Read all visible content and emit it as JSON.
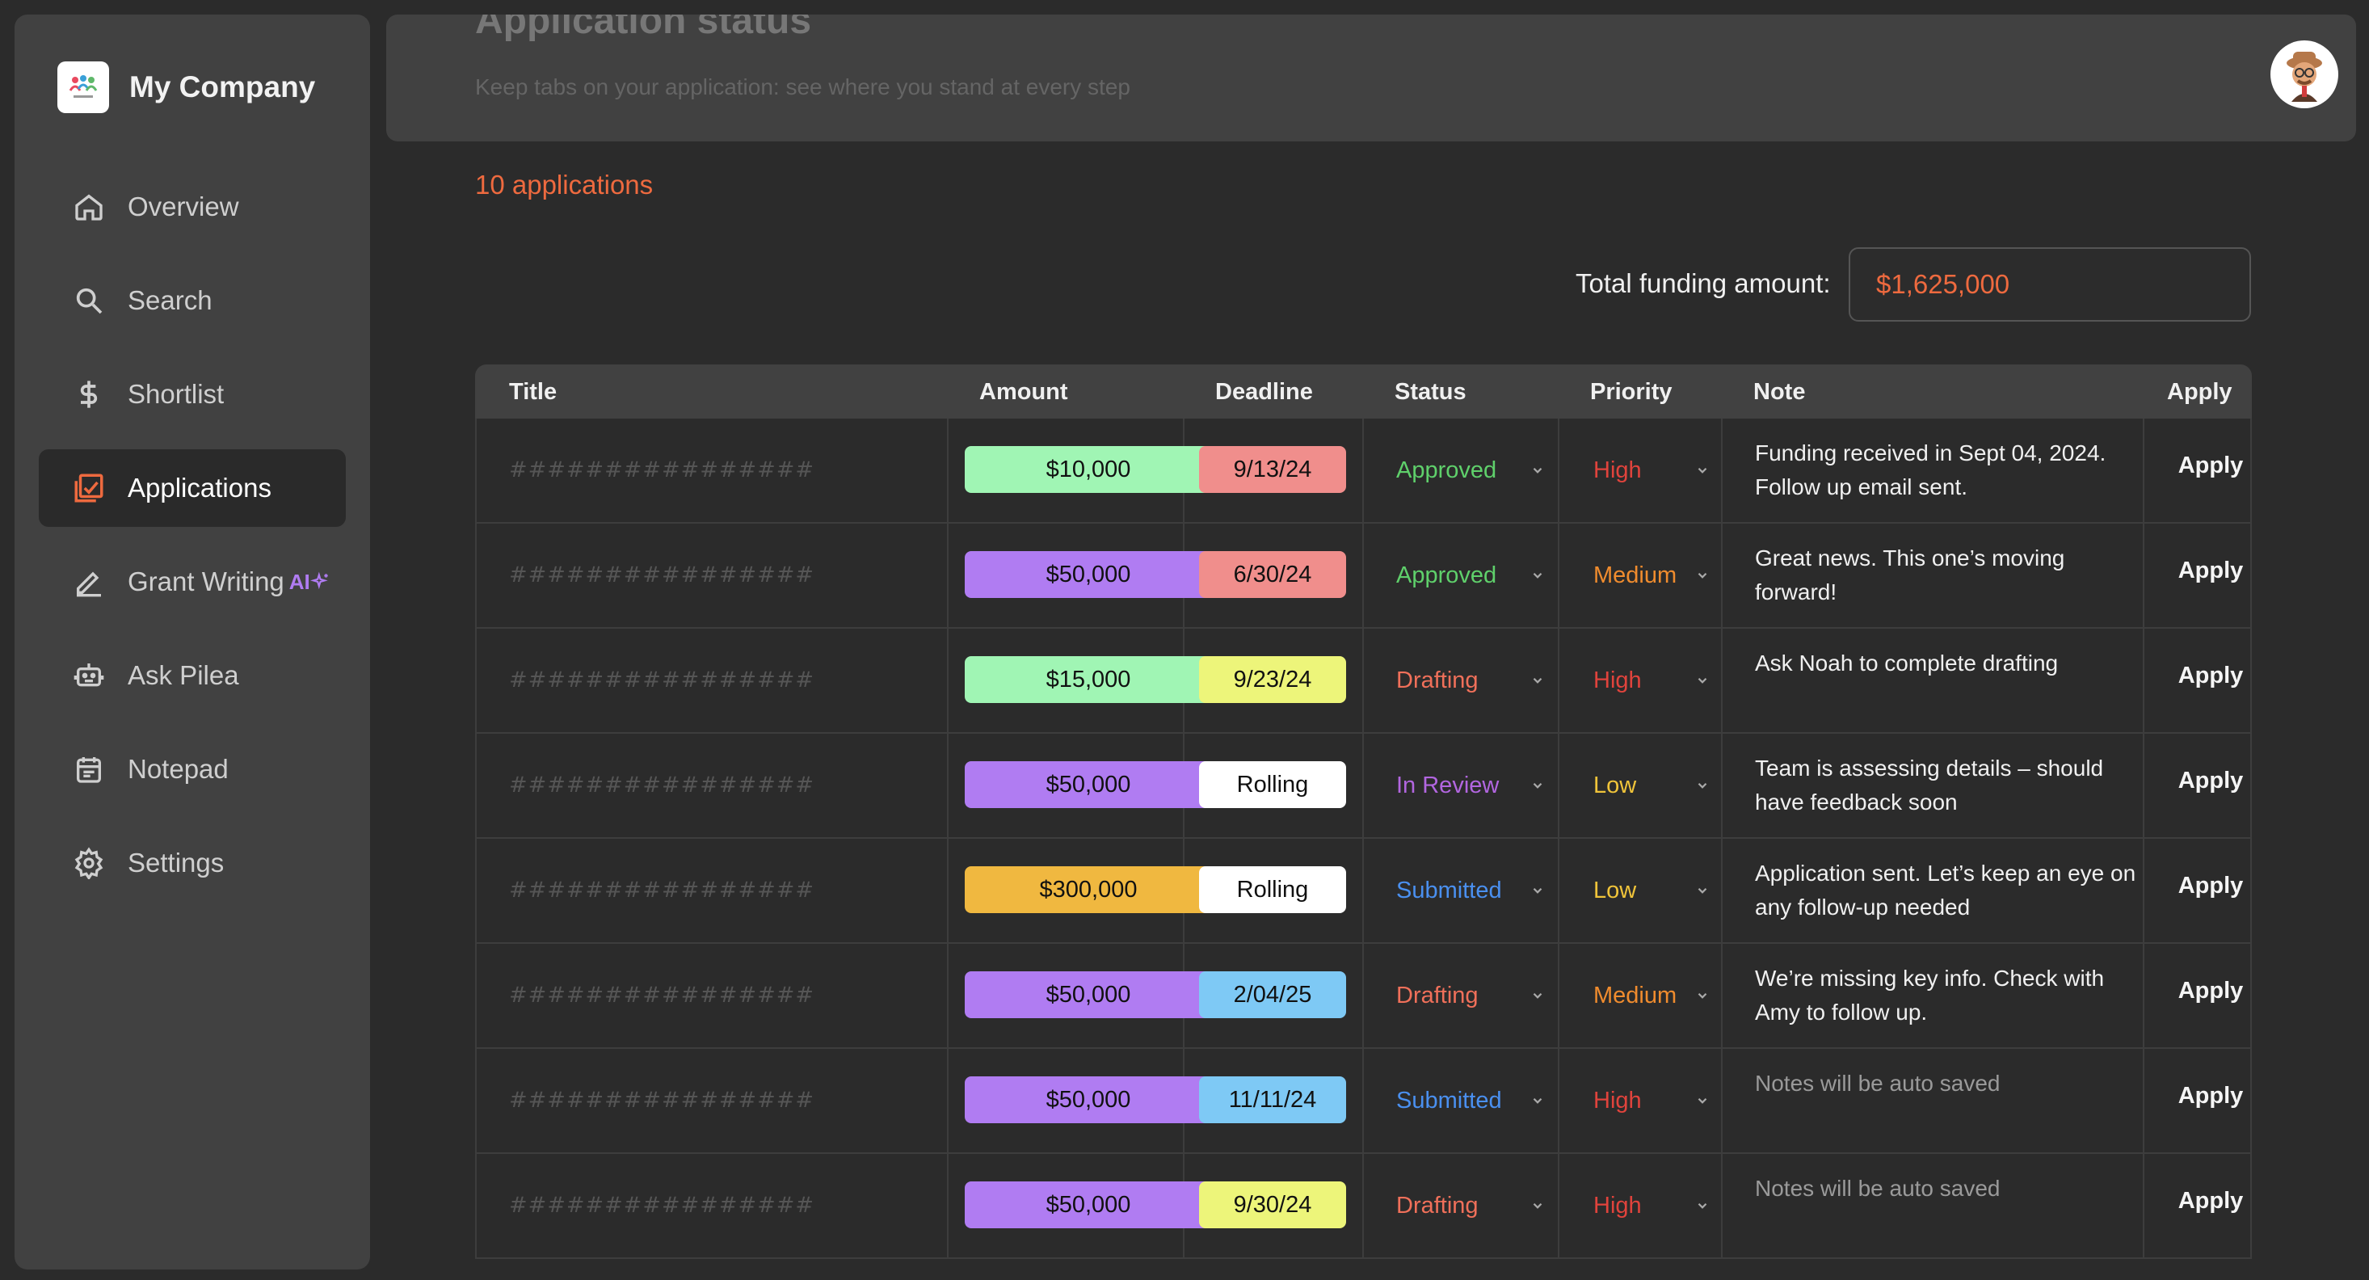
{
  "brand": {
    "name": "My Company"
  },
  "nav": [
    {
      "label": "Overview",
      "icon": "home-icon"
    },
    {
      "label": "Search",
      "icon": "search-icon"
    },
    {
      "label": "Shortlist",
      "icon": "dollar-icon"
    },
    {
      "label": "Applications",
      "icon": "chart-check-icon",
      "active": true
    },
    {
      "label": "Grant Writing",
      "icon": "pen-icon",
      "badge": "AI"
    },
    {
      "label": "Ask Pilea",
      "icon": "robot-icon"
    },
    {
      "label": "Notepad",
      "icon": "calendar-icon"
    },
    {
      "label": "Settings",
      "icon": "gear-icon"
    }
  ],
  "header": {
    "title": "Application status",
    "subtitle": "Keep tabs on your application: see where you stand at every step"
  },
  "summary": {
    "count_text": "10 applications",
    "total_label": "Total funding amount:",
    "total_value": "$1,625,000"
  },
  "table": {
    "columns": [
      "Title",
      "Amount",
      "Deadline",
      "Status",
      "Priority",
      "Note",
      "Apply"
    ],
    "rows": [
      {
        "title": "################",
        "amount": "$10,000",
        "amount_color": "#a0f5b4",
        "deadline": "9/13/24",
        "deadline_color": "#f08e8c",
        "status": "Approved",
        "status_color": "#5fd06b",
        "priority": "High",
        "priority_color": "#e0433c",
        "note": "Funding received in Sept 04, 2024. Follow up email sent.",
        "apply": "Apply"
      },
      {
        "title": "################",
        "amount": "$50,000",
        "amount_color": "#b07cf2",
        "deadline": "6/30/24",
        "deadline_color": "#f08e8c",
        "status": "Approved",
        "status_color": "#5fd06b",
        "priority": "Medium",
        "priority_color": "#f08c2e",
        "note": "Great news. This one’s moving forward!",
        "apply": "Apply"
      },
      {
        "title": "################",
        "amount": "$15,000",
        "amount_color": "#a0f5b4",
        "deadline": "9/23/24",
        "deadline_color": "#edf57a",
        "status": "Drafting",
        "status_color": "#f0705a",
        "priority": "High",
        "priority_color": "#e0433c",
        "note": "Ask Noah to complete drafting",
        "apply": "Apply"
      },
      {
        "title": "################",
        "amount": "$50,000",
        "amount_color": "#b07cf2",
        "deadline": "Rolling",
        "deadline_color": "#ffffff",
        "status": "In Review",
        "status_color": "#b266e0",
        "priority": "Low",
        "priority_color": "#f0c43a",
        "note": "Team is assessing details – should have feedback soon",
        "apply": "Apply"
      },
      {
        "title": "################",
        "amount": "$300,000",
        "amount_color": "#f0b840",
        "deadline": "Rolling",
        "deadline_color": "#ffffff",
        "status": "Submitted",
        "status_color": "#4a90f0",
        "priority": "Low",
        "priority_color": "#f0c43a",
        "note": "Application sent. Let’s keep an eye on any follow-up needed",
        "apply": "Apply"
      },
      {
        "title": "################",
        "amount": "$50,000",
        "amount_color": "#b07cf2",
        "deadline": "2/04/25",
        "deadline_color": "#7ec9f5",
        "status": "Drafting",
        "status_color": "#f0705a",
        "priority": "Medium",
        "priority_color": "#f08c2e",
        "note": "We’re missing key info. Check with Amy to follow up.",
        "apply": "Apply"
      },
      {
        "title": "################",
        "amount": "$50,000",
        "amount_color": "#b07cf2",
        "deadline": "11/11/24",
        "deadline_color": "#7ec9f5",
        "status": "Submitted",
        "status_color": "#4a90f0",
        "priority": "High",
        "priority_color": "#e0433c",
        "note": "Notes will be auto saved",
        "note_placeholder": true,
        "apply": "Apply"
      },
      {
        "title": "################",
        "amount": "$50,000",
        "amount_color": "#b07cf2",
        "deadline": "9/30/24",
        "deadline_color": "#edf57a",
        "status": "Drafting",
        "status_color": "#f0705a",
        "priority": "High",
        "priority_color": "#e0433c",
        "note": "Notes will be auto saved",
        "note_placeholder": true,
        "apply": "Apply"
      }
    ]
  }
}
